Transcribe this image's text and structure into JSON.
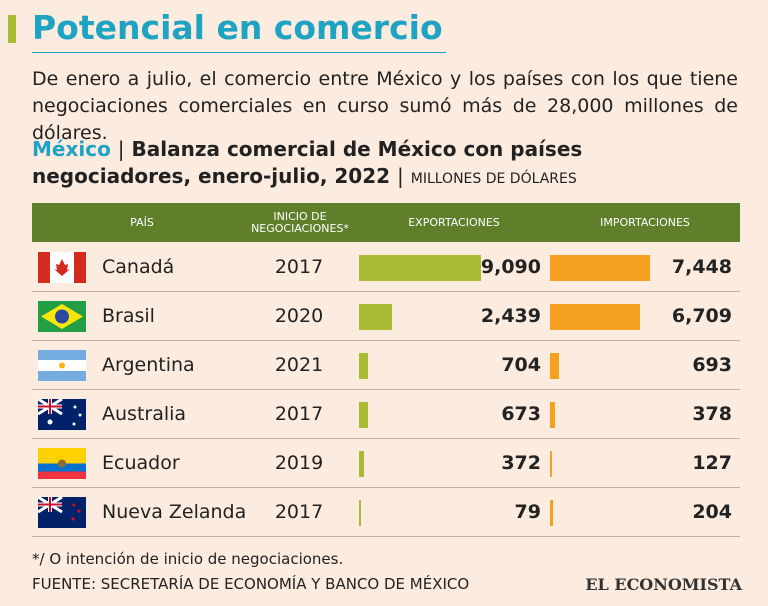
{
  "header": {
    "title": "Potencial en comercio",
    "intro": "De enero a julio, el comercio entre México y los países con los que tiene negociaciones comerciales en curso sumó más de 28,000 millones de dólares."
  },
  "chart_data": {
    "type": "table-bar",
    "title_prefix": "México",
    "title": "Balanza comercial de México con países negociadores, enero-julio, 2022",
    "units": "MILLONES DE DÓLARES",
    "columns": [
      "PAÍS",
      "INICIO DE NEGOCIACIONES*"
    ],
    "categories": [
      "Canadá",
      "Brasil",
      "Argentina",
      "Australia",
      "Ecuador",
      "Nueva Zelanda"
    ],
    "start_year": [
      2017,
      2020,
      2021,
      2017,
      2019,
      2017
    ],
    "series": [
      {
        "name": "EXPORTACIONES",
        "color": "#aabb34",
        "values": [
          9090,
          2439,
          704,
          673,
          372,
          79
        ],
        "value_labels": [
          "9,090",
          "2,439",
          "704",
          "673",
          "372",
          "79"
        ]
      },
      {
        "name": "IMPORTACIONES",
        "color": "#f5a01e",
        "values": [
          7448,
          6709,
          693,
          378,
          127,
          204
        ],
        "value_labels": [
          "7,448",
          "6,709",
          "693",
          "378",
          "127",
          "204"
        ]
      }
    ]
  },
  "footer": {
    "note": "*/ O intención de inicio de negociaciones.",
    "source": "FUENTE: SECRETARÍA DE ECONOMÍA Y BANCO DE MÉXICO",
    "brand": "EL ECONOMISTA"
  }
}
